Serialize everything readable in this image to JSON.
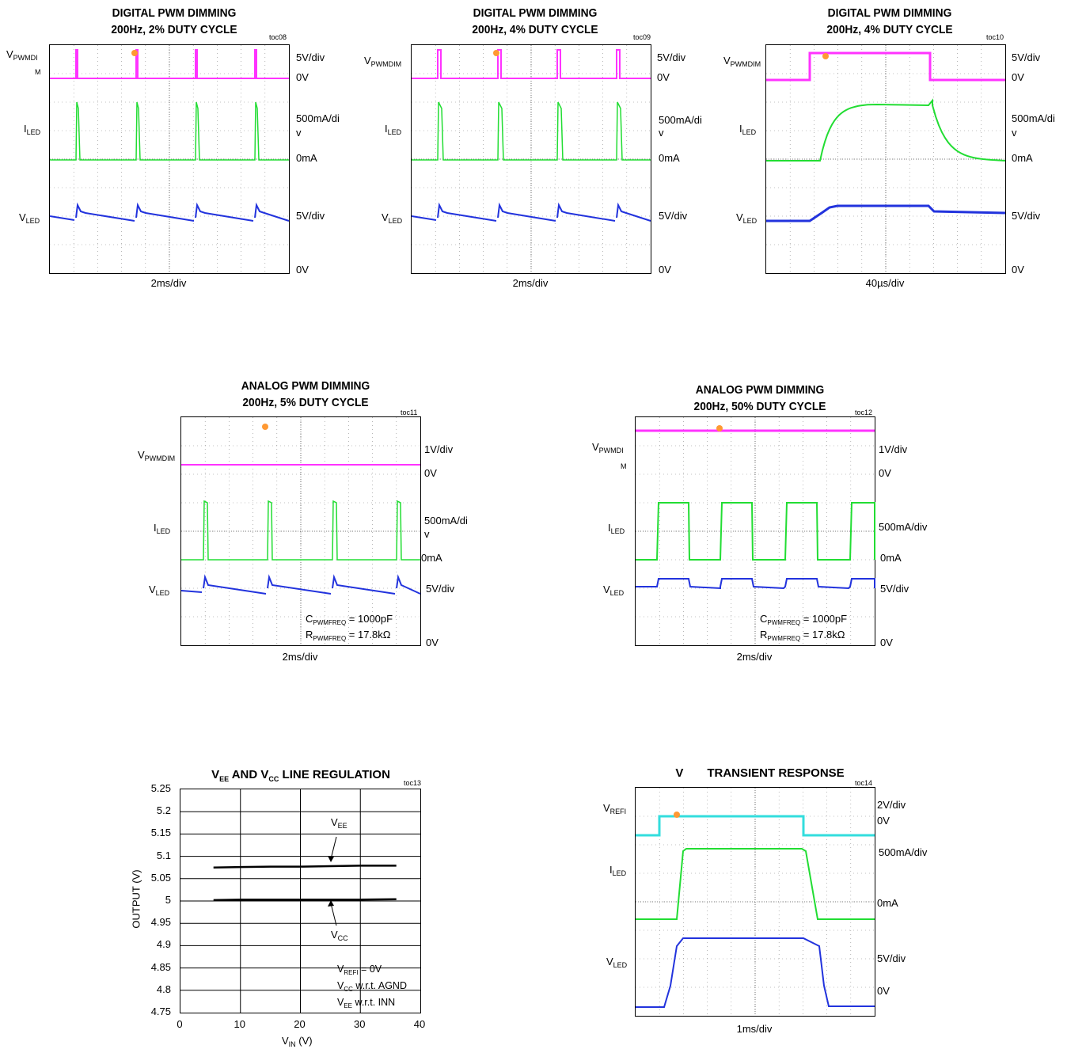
{
  "colors": {
    "pink": "#ff33ff",
    "green": "#22dd33",
    "blue": "#2233dd",
    "cyan": "#33dddd",
    "orange": "#ff9933",
    "grid": "#888888"
  },
  "toc08": {
    "title": "DIGITAL PWM DIMMING",
    "subtitle": "200Hz, 2% DUTY CYCLE",
    "toc": "toc08",
    "ch1_main": "V",
    "ch1_sub": "PWMDI",
    "ch1_wrap": "M",
    "ch2_main": "I",
    "ch2_sub": "LED",
    "ch3_main": "V",
    "ch3_sub": "LED",
    "s1": "5V/div",
    "s1z": "0V",
    "s2a": "500mA/di",
    "s2b": "v",
    "s2z": "0mA",
    "s3": "5V/div",
    "s3z": "0V",
    "xdiv": "2ms/div"
  },
  "toc09": {
    "title": "DIGITAL PWM DIMMING",
    "subtitle": "200Hz, 4% DUTY CYCLE",
    "toc": "toc09",
    "ch1_main": "V",
    "ch1_sub": "PWMDIM",
    "ch2_main": "I",
    "ch2_sub": "LED",
    "ch3_main": "V",
    "ch3_sub": "LED",
    "s1": "5V/div",
    "s1z": "0V",
    "s2a": "500mA/di",
    "s2b": "v",
    "s2z": "0mA",
    "s3": "5V/div",
    "s3z": "0V",
    "xdiv": "2ms/div"
  },
  "toc10": {
    "title": "DIGITAL PWM DIMMING",
    "subtitle": "200Hz, 4% DUTY CYCLE",
    "toc": "toc10",
    "ch1_main": "V",
    "ch1_sub": "PWMDIM",
    "ch2_main": "I",
    "ch2_sub": "LED",
    "ch3_main": "V",
    "ch3_sub": "LED",
    "s1": "5V/div",
    "s1z": "0V",
    "s2a": "500mA/di",
    "s2b": "v",
    "s2z": "0mA",
    "s3": "5V/div",
    "s3z": "0V",
    "xdiv": "40µs/div"
  },
  "toc11": {
    "title": "ANALOG PWM DIMMING",
    "subtitle": "200Hz, 5% DUTY CYCLE",
    "toc": "toc11",
    "ch1_main": "V",
    "ch1_sub": "PWMDIM",
    "ch2_main": "I",
    "ch2_sub": "LED",
    "ch3_main": "V",
    "ch3_sub": "LED",
    "s1": "1V/div",
    "s1z": "0V",
    "s2a": "500mA/di",
    "s2b": "v",
    "s2z": "0mA",
    "s3": "5V/div",
    "s3z": "0V",
    "c_main": "C",
    "c_sub": "PWMFREQ",
    "c_val": " = 1000pF",
    "r_main": "R",
    "r_sub": "PWMFREQ",
    "r_val": " = 17.8kΩ",
    "xdiv": "2ms/div"
  },
  "toc12": {
    "title": "ANALOG PWM DIMMING",
    "subtitle": "200Hz, 50% DUTY CYCLE",
    "toc": "toc12",
    "ch1_main": "V",
    "ch1_sub": "PWMDI",
    "ch1_wrap": "M",
    "ch2_main": "I",
    "ch2_sub": "LED",
    "ch3_main": "V",
    "ch3_sub": "LED",
    "s1": "1V/div",
    "s1z": "0V",
    "s2": "500mA/div",
    "s2z": "0mA",
    "s3": "5V/div",
    "s3z": "0V",
    "c_main": "C",
    "c_sub": "PWMFREQ",
    "c_val": " = 1000pF",
    "r_main": "R",
    "r_sub": "PWMFREQ",
    "r_val": " = 17.8kΩ",
    "xdiv": "2ms/div"
  },
  "toc14": {
    "title_a": "V",
    "title_b": "TRANSIENT RESPONSE",
    "toc": "toc14",
    "ch1_main": "V",
    "ch1_sub": "REFI",
    "ch2_main": "I",
    "ch2_sub": "LED",
    "ch3_main": "V",
    "ch3_sub": "LED",
    "s1": "2V/div",
    "s1z": "0V",
    "s2": "500mA/div",
    "s2z": "0mA",
    "s3": "5V/div",
    "s3z": "0V",
    "xdiv": "1ms/div"
  },
  "chart_data": {
    "type": "line",
    "toc": "toc13",
    "title_parts": {
      "v": "V",
      "ee": "EE",
      "and": " AND V",
      "cc": "CC",
      "rest": " LINE REGULATION"
    },
    "xlabel_main": "V",
    "xlabel_sub": "IN",
    "xlabel_unit": " (V)",
    "ylabel": "OUTPUT (V)",
    "xlim": [
      0,
      40
    ],
    "ylim": [
      4.75,
      5.25
    ],
    "xticks": [
      "0",
      "10",
      "20",
      "30",
      "40"
    ],
    "yticks": [
      "5.25",
      "5.2",
      "5.15",
      "5.1",
      "5.05",
      "5",
      "4.95",
      "4.9",
      "4.85",
      "4.8",
      "4.75"
    ],
    "series": [
      {
        "name": "VEE",
        "label_main": "V",
        "label_sub": "EE",
        "x": [
          5.5,
          10,
          15,
          20,
          25,
          30,
          36
        ],
        "y": [
          5.075,
          5.076,
          5.077,
          5.077,
          5.078,
          5.079,
          5.079
        ]
      },
      {
        "name": "VCC",
        "label_main": "V",
        "label_sub": "CC",
        "x": [
          5.5,
          10,
          15,
          20,
          25,
          30,
          36
        ],
        "y": [
          5.002,
          5.003,
          5.003,
          5.003,
          5.003,
          5.003,
          5.004
        ]
      }
    ],
    "notes": [
      {
        "main": "V",
        "sub": "REFI",
        "rest": " = 0V"
      },
      {
        "main": "V",
        "sub": "CC",
        "rest": " w.r.t. AGND"
      },
      {
        "main": "V",
        "sub": "EE",
        "rest": " w.r.t. INN"
      }
    ]
  }
}
